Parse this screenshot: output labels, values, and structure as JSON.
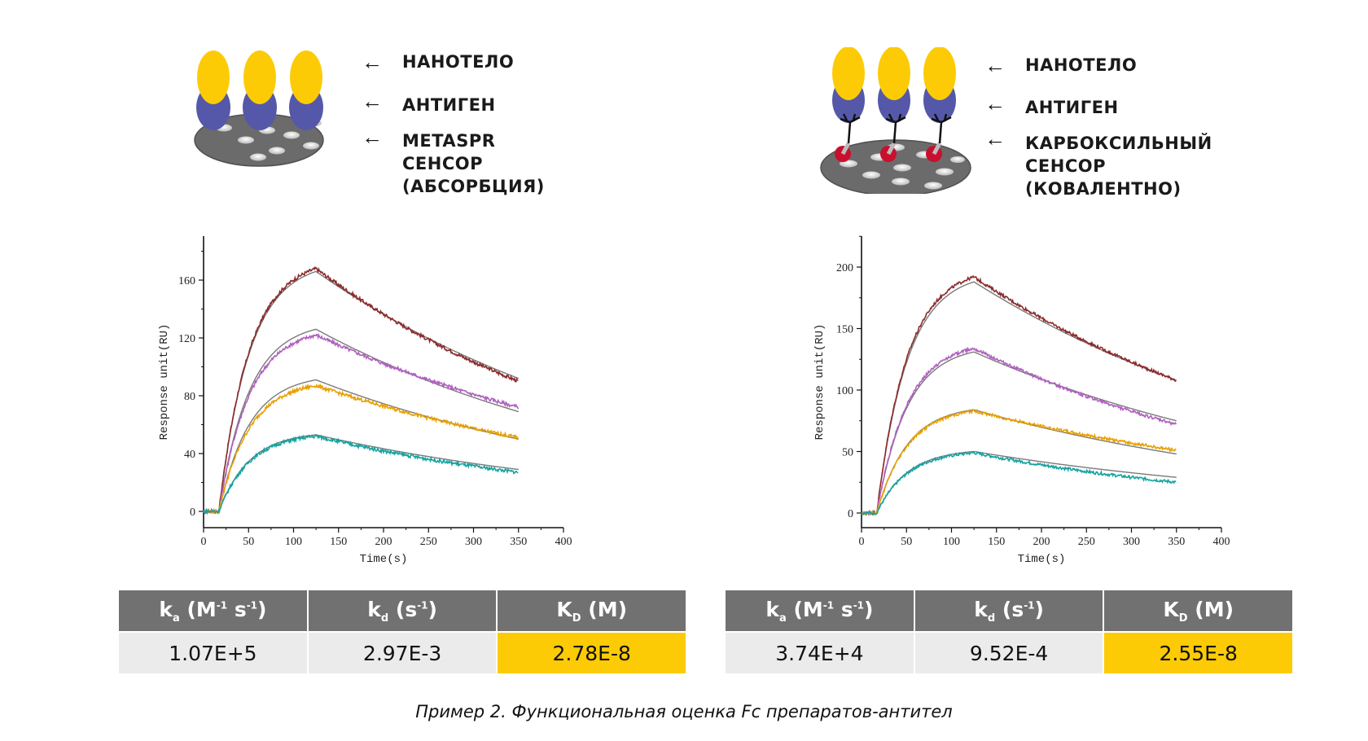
{
  "colors": {
    "nanobody": "#fccb05",
    "antigen": "#5558a8",
    "sensor": "#6b6b6b",
    "linker_dot": "#c8102e",
    "table_header": "#717171",
    "table_cell": "#ebebeb",
    "table_highlight": "#fccb05",
    "series_1": "#8b2a2a",
    "series_2": "#b05fc0",
    "series_3": "#e8a000",
    "series_4": "#14a3a0",
    "fit": "#7a7a7a"
  },
  "panels": [
    {
      "diagram": {
        "arrow_icon": "arrow-left-icon",
        "labels": [
          "НАНОТЕЛО",
          "АНТИГЕН",
          "METASPR",
          "СЕНСОР",
          "(АБСОРБЦИЯ)"
        ]
      },
      "table": {
        "headers": [
          {
            "main": "k",
            "sub": "a",
            "rest": " (M",
            "sup1": "-1",
            "mid": " s",
            "sup2": "-1",
            "end": ")"
          },
          {
            "main": "k",
            "sub": "d",
            "rest": " (s",
            "sup1": "-1",
            "mid": "",
            "sup2": "",
            "end": ")"
          },
          {
            "main": "K",
            "sub": "D",
            "rest": " (M)",
            "sup1": "",
            "mid": "",
            "sup2": "",
            "end": ""
          }
        ],
        "values": [
          "1.07E+5",
          "2.97E-3",
          "2.78E-8"
        ]
      }
    },
    {
      "diagram": {
        "arrow_icon": "arrow-left-icon",
        "labels": [
          "НАНОТЕЛО",
          "АНТИГЕН",
          "КАРБОКСИЛЬНЫЙ",
          "СЕНСОР",
          "(КОВАЛЕНТНО)"
        ]
      },
      "table": {
        "headers": [
          {
            "main": "k",
            "sub": "a",
            "rest": " (M",
            "sup1": "-1",
            "mid": " s",
            "sup2": "-1",
            "end": ")"
          },
          {
            "main": "k",
            "sub": "d",
            "rest": " (s",
            "sup1": "-1",
            "mid": "",
            "sup2": "",
            "end": ")"
          },
          {
            "main": "K",
            "sub": "D",
            "rest": " (M)",
            "sup1": "",
            "mid": "",
            "sup2": "",
            "end": ""
          }
        ],
        "values": [
          "3.74E+4",
          "9.52E-4",
          "2.55E-8"
        ]
      }
    }
  ],
  "chart_data": [
    {
      "type": "line",
      "title": "",
      "xlabel": "Time(s)",
      "ylabel": "Response unit(RU)",
      "xlim": [
        0,
        400
      ],
      "ylim": [
        -10,
        190
      ],
      "xticks": [
        0,
        50,
        100,
        150,
        200,
        250,
        300,
        350,
        400
      ],
      "yticks": [
        0,
        40,
        80,
        120,
        160
      ],
      "grid": false,
      "legend": "none",
      "association_start": 17,
      "association_end": 125,
      "end_time": 350,
      "series": [
        {
          "name": "series_1",
          "color": "#8b2a2a",
          "peak": 168,
          "end": 90
        },
        {
          "name": "series_2",
          "color": "#b05fc0",
          "peak": 122,
          "end": 72
        },
        {
          "name": "series_3",
          "color": "#e8a000",
          "peak": 87,
          "end": 51
        },
        {
          "name": "series_4",
          "color": "#14a3a0",
          "peak": 52,
          "end": 27
        }
      ],
      "fits": [
        {
          "name": "fit_1",
          "peak": 166,
          "end": 92
        },
        {
          "name": "fit_2",
          "peak": 126,
          "end": 69
        },
        {
          "name": "fit_3",
          "peak": 91,
          "end": 50
        },
        {
          "name": "fit_4",
          "peak": 53,
          "end": 29
        }
      ]
    },
    {
      "type": "line",
      "title": "",
      "xlabel": "Time(s)",
      "ylabel": "Response unit(RU)",
      "xlim": [
        0,
        400
      ],
      "ylim": [
        -10,
        225
      ],
      "xticks": [
        0,
        50,
        100,
        150,
        200,
        250,
        300,
        350,
        400
      ],
      "yticks": [
        0,
        50,
        100,
        150,
        200
      ],
      "grid": false,
      "legend": "none",
      "association_start": 17,
      "association_end": 125,
      "end_time": 350,
      "series": [
        {
          "name": "series_1",
          "color": "#8b2a2a",
          "peak": 192,
          "end": 108
        },
        {
          "name": "series_2",
          "color": "#b05fc0",
          "peak": 134,
          "end": 72
        },
        {
          "name": "series_3",
          "color": "#e8a000",
          "peak": 83,
          "end": 51
        },
        {
          "name": "series_4",
          "color": "#14a3a0",
          "peak": 49,
          "end": 25
        }
      ],
      "fits": [
        {
          "name": "fit_1",
          "peak": 188,
          "end": 108
        },
        {
          "name": "fit_2",
          "peak": 131,
          "end": 75
        },
        {
          "name": "fit_3",
          "peak": 84,
          "end": 48
        },
        {
          "name": "fit_4",
          "peak": 50,
          "end": 29
        }
      ]
    }
  ],
  "caption": "Пример 2. Функциональная оценка Fc препаратов-антител"
}
